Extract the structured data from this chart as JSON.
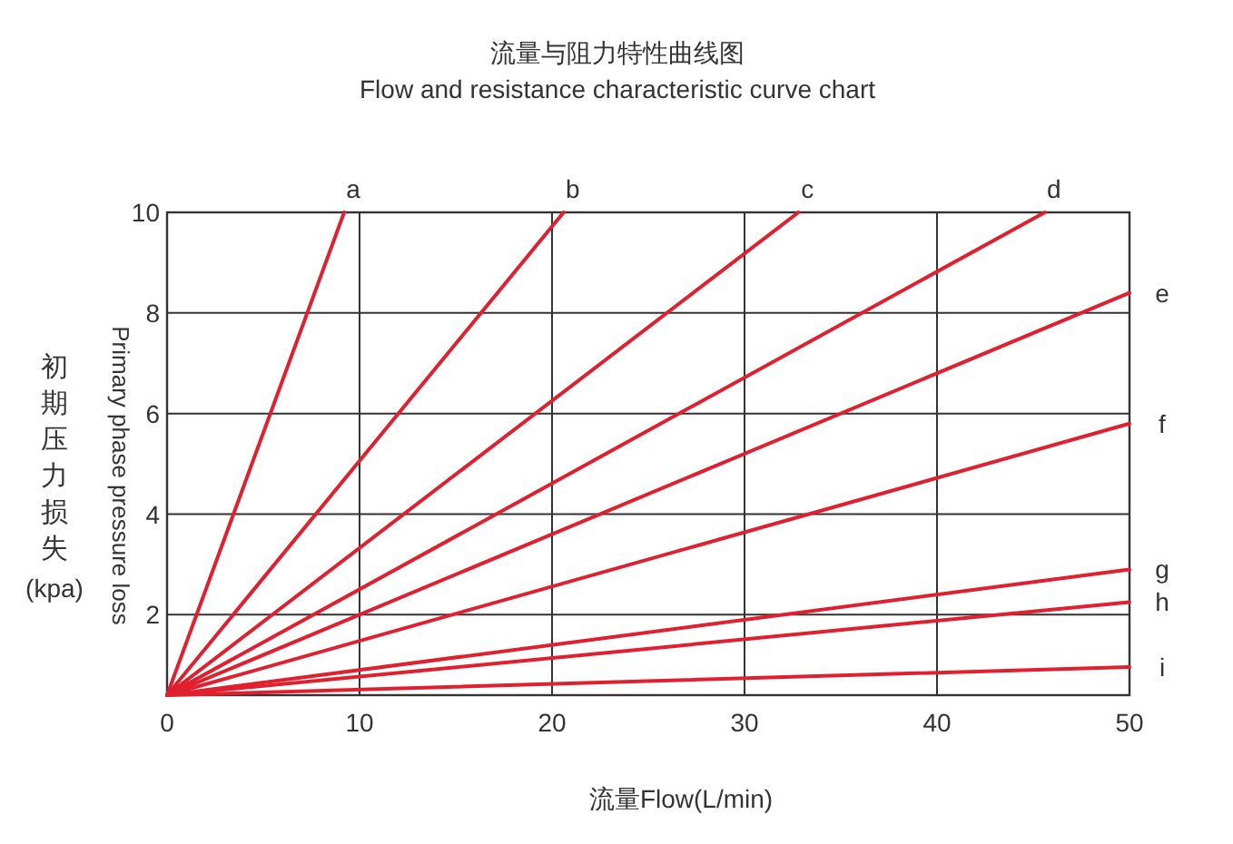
{
  "chart_data": {
    "type": "line",
    "title": "流量与阻力特性曲线图",
    "subtitle": "Flow and resistance characteristic curve chart",
    "xlabel": "流量Flow(L/min)",
    "ylabel": "初期压力损失(kpa)",
    "annotations": [
      "Primary phase pressure loss"
    ],
    "xlim": [
      0,
      50
    ],
    "ylim": [
      0.4,
      10
    ],
    "xticks": [
      0,
      10,
      20,
      30,
      40,
      50
    ],
    "yticks": [
      2,
      4,
      6,
      8,
      10
    ],
    "grid": true,
    "marker": "none",
    "line_style": "solid",
    "series": [
      {
        "name": "a",
        "color": "#e0202e",
        "x": [
          0,
          9.2
        ],
        "values": [
          0.4,
          10
        ]
      },
      {
        "name": "b",
        "color": "#e0202e",
        "x": [
          0,
          20.6
        ],
        "values": [
          0.4,
          10
        ]
      },
      {
        "name": "c",
        "color": "#e0202e",
        "x": [
          0,
          32.8
        ],
        "values": [
          0.4,
          10
        ]
      },
      {
        "name": "d",
        "color": "#e0202e",
        "x": [
          0,
          45.6
        ],
        "values": [
          0.4,
          10
        ]
      },
      {
        "name": "e",
        "color": "#e0202e",
        "x": [
          0,
          50
        ],
        "values": [
          0.4,
          8.4
        ]
      },
      {
        "name": "f",
        "color": "#e0202e",
        "x": [
          0,
          50
        ],
        "values": [
          0.4,
          5.8
        ]
      },
      {
        "name": "g",
        "color": "#e0202e",
        "x": [
          0,
          50
        ],
        "values": [
          0.4,
          2.9
        ]
      },
      {
        "name": "h",
        "color": "#e0202e",
        "x": [
          0,
          50
        ],
        "values": [
          0.4,
          2.25
        ]
      },
      {
        "name": "i",
        "color": "#e0202e",
        "x": [
          0,
          50
        ],
        "values": [
          0.4,
          0.96
        ]
      }
    ]
  }
}
